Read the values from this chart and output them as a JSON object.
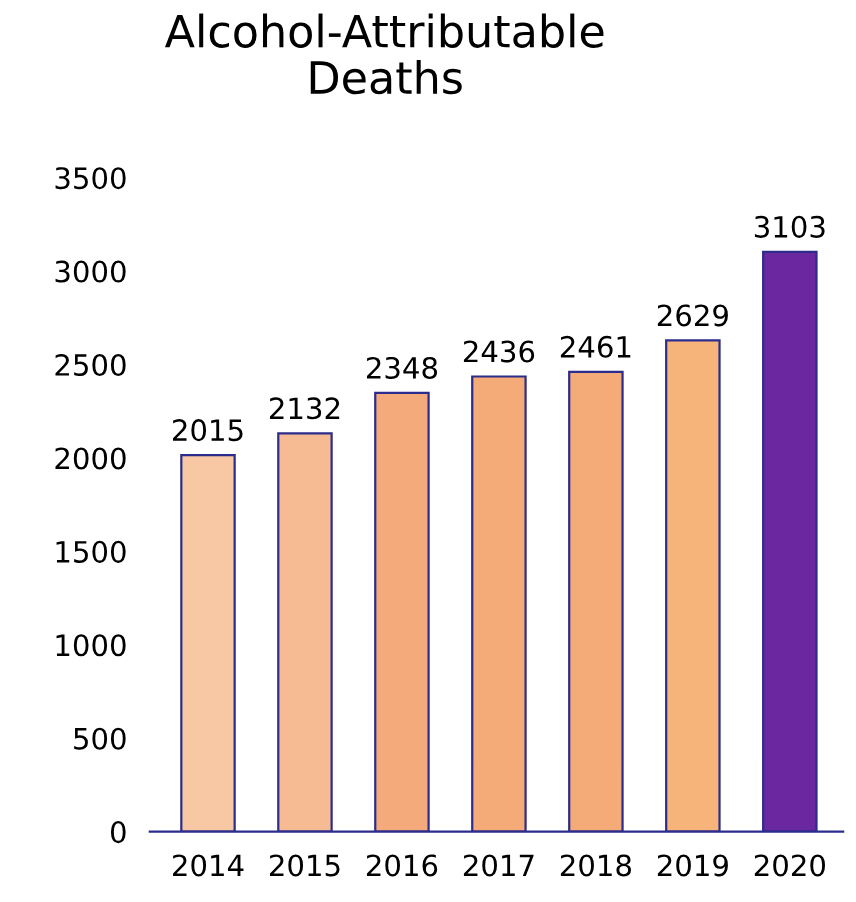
{
  "chart_data": {
    "type": "bar",
    "title": "Alcohol-Attributable\nDeaths",
    "categories": [
      "2014",
      "2015",
      "2016",
      "2017",
      "2018",
      "2019",
      "2020"
    ],
    "values": [
      2015,
      2132,
      2348,
      2436,
      2461,
      2629,
      3103
    ],
    "colors": [
      "#f8c8a4",
      "#f7bb94",
      "#f4aa7a",
      "#f4ab78",
      "#f4ab78",
      "#f6b47a",
      "#6a27a0"
    ],
    "ylim": [
      0,
      3500
    ],
    "yticks": [
      0,
      500,
      1000,
      1500,
      2000,
      2500,
      3000,
      3500
    ],
    "grid": false,
    "data_labels": true
  }
}
